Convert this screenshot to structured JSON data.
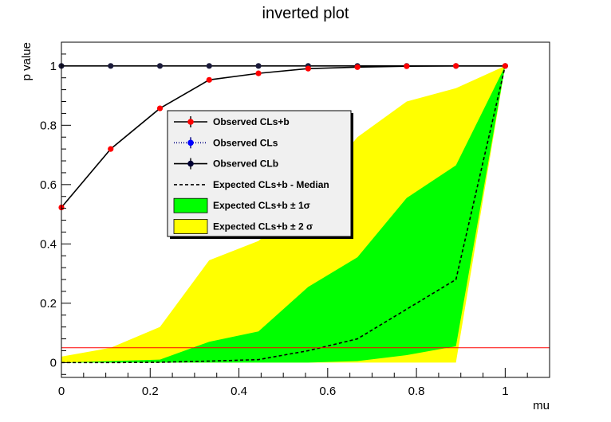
{
  "chart_data": {
    "type": "line",
    "title": "inverted plot",
    "xlabel": "mu",
    "ylabel": "p value",
    "xlim": [
      0,
      1.1
    ],
    "ylim": [
      -0.05,
      1.08
    ],
    "xticks": [
      0,
      0.2,
      0.4,
      0.6,
      0.8,
      1
    ],
    "xtick_labels": [
      "0",
      "0.2",
      "0.4",
      "0.6",
      "0.8",
      "1"
    ],
    "yticks": [
      0,
      0.2,
      0.4,
      0.6,
      0.8,
      1
    ],
    "ytick_labels": [
      "0",
      "0.2",
      "0.4",
      "0.6",
      "0.8",
      "1"
    ],
    "x": [
      0,
      0.111,
      0.222,
      0.333,
      0.444,
      0.556,
      0.667,
      0.778,
      0.889,
      1.0
    ],
    "series": [
      {
        "name": "Observed CLs+b",
        "style": "solid-red-markers",
        "values": [
          0.523,
          0.72,
          0.857,
          0.953,
          0.975,
          0.991,
          0.996,
          0.999,
          1.0,
          1.0
        ]
      },
      {
        "name": "Observed CLs",
        "style": "dotted-blue-markers",
        "values": [
          1.0,
          1.0,
          1.0,
          1.0,
          1.0,
          1.0,
          1.0,
          1.0,
          1.0,
          1.0
        ]
      },
      {
        "name": "Observed CLb",
        "style": "solid-navy-markers",
        "values": [
          1.0,
          1.0,
          1.0,
          1.0,
          1.0,
          1.0,
          1.0,
          1.0,
          1.0,
          1.0
        ]
      },
      {
        "name": "Expected CLs+b - Median",
        "style": "dashed",
        "values": [
          0.0,
          0.0,
          0.001,
          0.005,
          0.01,
          0.04,
          0.08,
          0.18,
          0.28,
          1.0
        ]
      }
    ],
    "bands": [
      {
        "name": "Expected CLs+b ± 2 σ",
        "color": "#ffff00",
        "x": [
          0,
          0.111,
          0.222,
          0.333,
          0.444,
          0.556,
          0.667,
          0.778,
          0.889,
          1.0
        ],
        "low": [
          0.0,
          0.0,
          0.0,
          0.0,
          0.0,
          0.0,
          0.0,
          0.0,
          0.0,
          1.0
        ],
        "high": [
          0.02,
          0.05,
          0.12,
          0.345,
          0.41,
          0.56,
          0.76,
          0.88,
          0.925,
          1.0
        ]
      },
      {
        "name": "Expected CLs+b ± 1 σ",
        "color": "#00ff00",
        "x": [
          0,
          0.111,
          0.222,
          0.333,
          0.444,
          0.556,
          0.667,
          0.778,
          0.889,
          1.0
        ],
        "low": [
          0.0,
          0.0,
          0.0,
          0.0,
          0.0,
          0.0,
          0.005,
          0.025,
          0.055,
          1.0
        ],
        "high": [
          0.0,
          0.005,
          0.01,
          0.07,
          0.105,
          0.255,
          0.355,
          0.555,
          0.665,
          1.0
        ]
      }
    ],
    "threshold": {
      "y": 0.05,
      "color": "#ff0000"
    },
    "legend": {
      "placement": "center-left",
      "entries": [
        {
          "label": "Observed CLs+b",
          "kind": "line-marker",
          "line_color": "#000000",
          "marker_color": "#ff0000",
          "dash": "solid"
        },
        {
          "label": "Observed CLs",
          "kind": "line-marker",
          "line_color": "#000080",
          "marker_color": "#0000ff",
          "dash": "dotted"
        },
        {
          "label": "Observed CLb",
          "kind": "line-marker",
          "line_color": "#000000",
          "marker_color": "#000033",
          "dash": "solid"
        },
        {
          "label": "Expected CLs+b - Median",
          "kind": "line",
          "line_color": "#000000",
          "dash": "dashed"
        },
        {
          "label": "Expected CLs+b ± 1σ",
          "kind": "box",
          "color": "#00ff00"
        },
        {
          "label": "Expected CLs+b ± 2 σ",
          "kind": "box",
          "color": "#ffff00"
        }
      ]
    }
  }
}
